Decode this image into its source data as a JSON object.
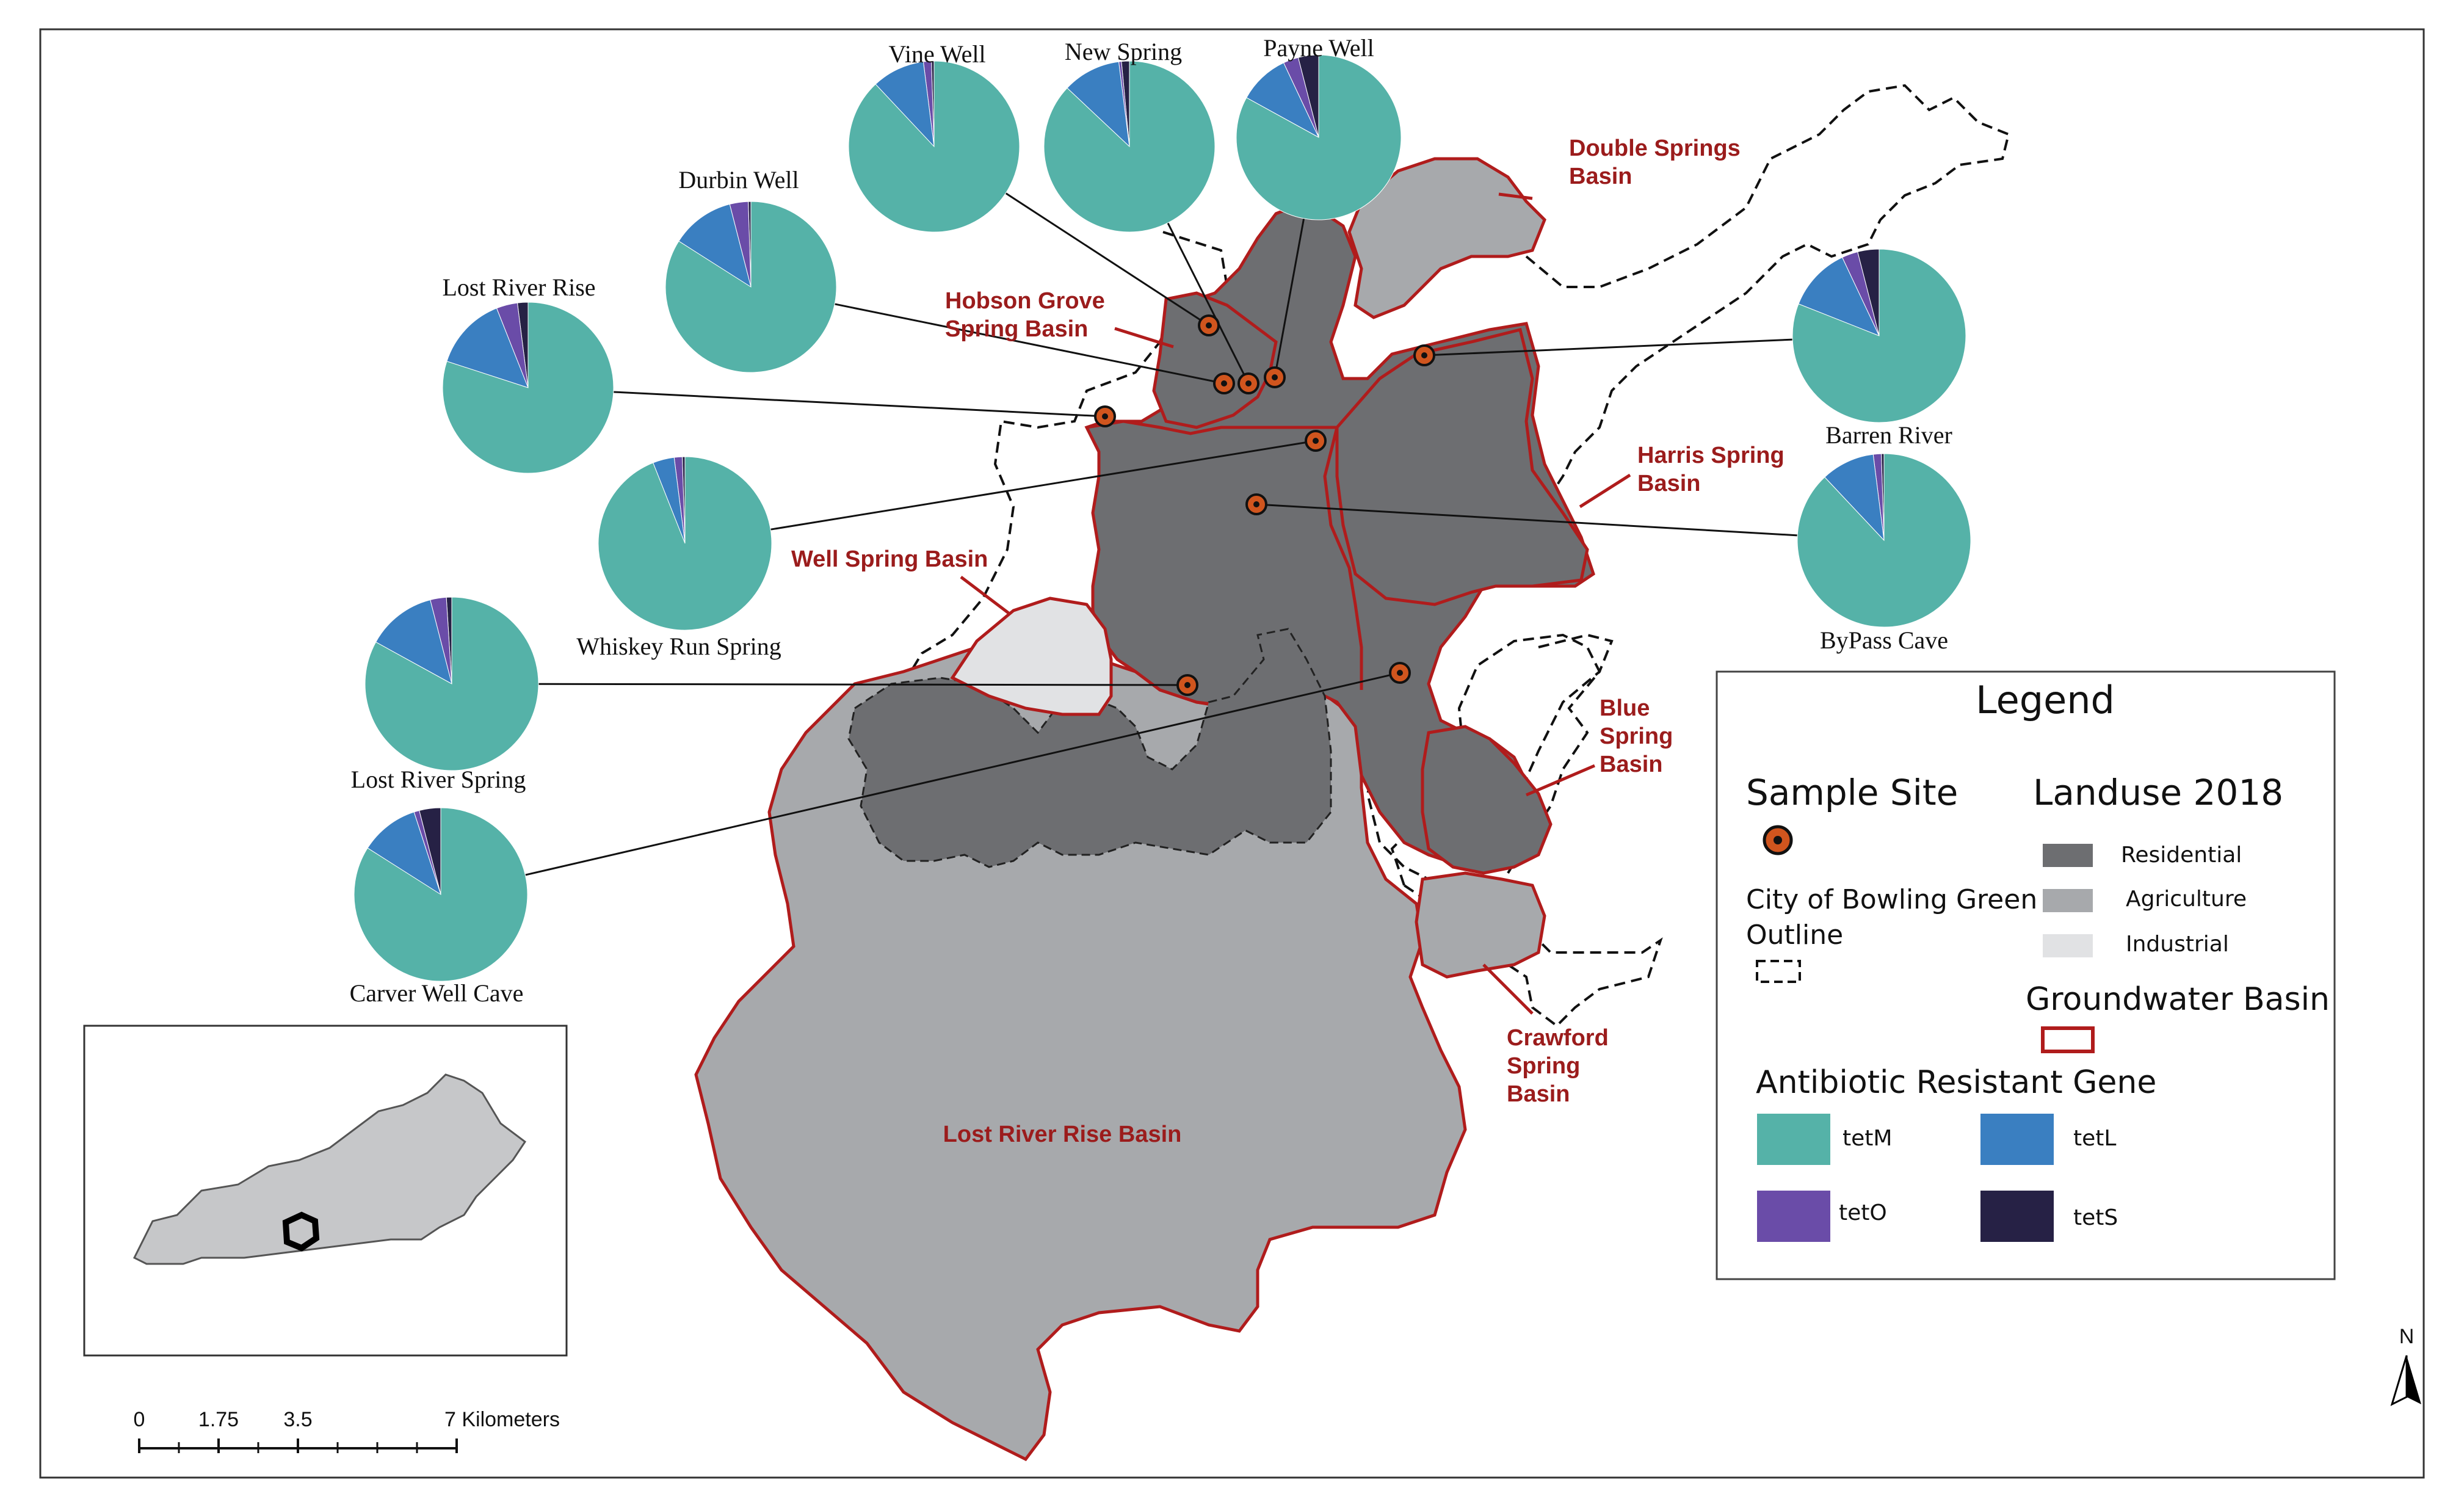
{
  "map": {
    "basins": [
      {
        "name": "Double Springs Basin",
        "lines": [
          "Double Springs",
          "Basin"
        ]
      },
      {
        "name": "Hobson Grove Spring Basin",
        "lines": [
          "Hobson Grove",
          "Spring Basin"
        ]
      },
      {
        "name": "Harris Spring Basin",
        "lines": [
          "Harris Spring",
          "Basin"
        ]
      },
      {
        "name": "Well Spring Basin",
        "lines": [
          "Well Spring Basin"
        ]
      },
      {
        "name": "Blue Spring Basin",
        "lines": [
          "Blue",
          "Spring",
          "Basin"
        ]
      },
      {
        "name": "Crawford Spring Basin",
        "lines": [
          "Crawford",
          "Spring",
          "Basin"
        ]
      },
      {
        "name": "Lost River Rise Basin",
        "lines": [
          "Lost River Rise Basin"
        ]
      }
    ],
    "sites": [
      {
        "name": "Vine Well",
        "tetM": 0.88,
        "tetL": 0.1,
        "tetO": 0.015,
        "tetS": 0.005
      },
      {
        "name": "New Spring",
        "tetM": 0.87,
        "tetL": 0.11,
        "tetO": 0.005,
        "tetS": 0.015
      },
      {
        "name": "Payne Well",
        "tetM": 0.83,
        "tetL": 0.1,
        "tetO": 0.03,
        "tetS": 0.04
      },
      {
        "name": "Durbin Well",
        "tetM": 0.84,
        "tetL": 0.12,
        "tetO": 0.035,
        "tetS": 0.005
      },
      {
        "name": "Lost River Rise",
        "tetM": 0.8,
        "tetL": 0.14,
        "tetO": 0.04,
        "tetS": 0.02
      },
      {
        "name": "Barren River",
        "tetM": 0.81,
        "tetL": 0.12,
        "tetO": 0.03,
        "tetS": 0.04
      },
      {
        "name": "Whiskey Run Spring",
        "tetM": 0.94,
        "tetL": 0.04,
        "tetO": 0.015,
        "tetS": 0.005
      },
      {
        "name": "ByPass Cave",
        "tetM": 0.88,
        "tetL": 0.1,
        "tetO": 0.015,
        "tetS": 0.005
      },
      {
        "name": "Lost River Spring",
        "tetM": 0.83,
        "tetL": 0.13,
        "tetO": 0.03,
        "tetS": 0.01
      },
      {
        "name": "Carver Well Cave",
        "tetM": 0.84,
        "tetL": 0.11,
        "tetO": 0.01,
        "tetS": 0.04
      }
    ]
  },
  "legend": {
    "title": "Legend",
    "sample_site": "Sample Site",
    "landuse_title": "Landuse 2018",
    "landuse": [
      {
        "label": "Residential",
        "color": "#6d6e71"
      },
      {
        "label": "Agriculture",
        "color": "#a7a9ac"
      },
      {
        "label": "Industrial",
        "color": "#e1e2e4"
      }
    ],
    "city_outline": [
      "City of Bowling Green",
      "Outline"
    ],
    "groundwater": "Groundwater Basin",
    "gene_title": "Antibiotic Resistant Gene",
    "genes": [
      {
        "label": "tetM",
        "color": "#55b2a8"
      },
      {
        "label": "tetL",
        "color": "#3a7fc1"
      },
      {
        "label": "tetO",
        "color": "#6a4ca8"
      },
      {
        "label": "tetS",
        "color": "#262145"
      }
    ]
  },
  "scale": {
    "ticks": [
      "0",
      "1.75",
      "3.5",
      "7 Kilometers"
    ]
  },
  "north_label": "N",
  "colors": {
    "basin_outline": "#b01c1c",
    "residential": "#6d6e71",
    "agriculture": "#a7a9ac",
    "industrial": "#e1e2e4",
    "site_fill": "#d0551e"
  }
}
